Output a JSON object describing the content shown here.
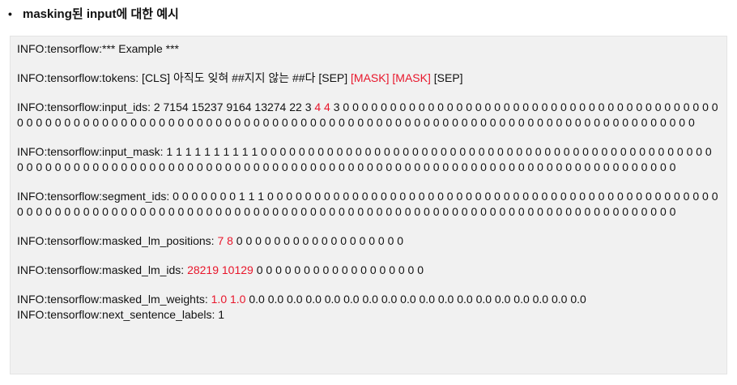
{
  "heading": {
    "bullet": "•",
    "text": "masking된 input에 대한 예시"
  },
  "colors": {
    "highlight": "#e8162b",
    "panel_bg": "#f1f1f1"
  },
  "log": {
    "example": "INFO:tensorflow:*** Example ***",
    "tokens": {
      "prefix": "INFO:tensorflow:tokens: [CLS] 아직도 잊혀 ##지지 않는 ##다 [SEP] ",
      "masked": "[MASK] [MASK]",
      "suffix": " [SEP]"
    },
    "input_ids": {
      "prefix": "INFO:tensorflow:input_ids: 2 7154 15237 9164 13274 22 3 ",
      "masked": "4 4",
      "suffix": " 3 0 0 0 0 0 0 0 0 0 0 0 0 0 0 0 0 0 0 0 0 0 0 0 0 0 0 0 0 0 0 0 0 0 0 0 0 0 0 0 0 0 0 0 0 0 0 0 0 0 0 0 0 0 0 0 0 0 0 0 0 0 0 0 0 0 0 0 0 0 0 0 0 0 0 0 0 0 0 0 0 0 0 0 0 0 0 0 0 0 0 0 0 0 0 0 0 0 0 0 0 0 0 0 0 0 0 0 0 0 0 0 0"
    },
    "input_mask": "INFO:tensorflow:input_mask: 1 1 1 1 1 1 1 1 1 1 0 0 0 0 0 0 0 0 0 0 0 0 0 0 0 0 0 0 0 0 0 0 0 0 0 0 0 0 0 0 0 0 0 0 0 0 0 0 0 0 0 0 0 0 0 0 0 0 0 0 0 0 0 0 0 0 0 0 0 0 0 0 0 0 0 0 0 0 0 0 0 0 0 0 0 0 0 0 0 0 0 0 0 0 0 0 0 0 0 0 0 0 0 0 0 0 0 0 0 0 0 0 0 0 0 0 0 0 0 0 0 0 0 0 0 0 0 0",
    "segment_ids": "INFO:tensorflow:segment_ids: 0 0 0 0 0 0 0 1 1 1 0 0 0 0 0 0 0 0 0 0 0 0 0 0 0 0 0 0 0 0 0 0 0 0 0 0 0 0 0 0 0 0 0 0 0 0 0 0 0 0 0 0 0 0 0 0 0 0 0 0 0 0 0 0 0 0 0 0 0 0 0 0 0 0 0 0 0 0 0 0 0 0 0 0 0 0 0 0 0 0 0 0 0 0 0 0 0 0 0 0 0 0 0 0 0 0 0 0 0 0 0 0 0 0 0 0 0 0 0 0 0 0 0 0 0 0 0 0",
    "masked_lm_positions": {
      "prefix": "INFO:tensorflow:masked_lm_positions: ",
      "masked": "7 8",
      "suffix": " 0 0 0 0 0 0 0 0 0 0 0 0 0 0 0 0 0 0"
    },
    "masked_lm_ids": {
      "prefix": "INFO:tensorflow:masked_lm_ids: ",
      "masked": "28219 10129",
      "suffix": " 0 0 0 0 0 0 0 0 0 0 0 0 0 0 0 0 0 0"
    },
    "masked_lm_weights": {
      "prefix": "INFO:tensorflow:masked_lm_weights: ",
      "masked": "1.0 1.0",
      "suffix": " 0.0 0.0 0.0 0.0 0.0 0.0 0.0 0.0 0.0 0.0 0.0 0.0 0.0 0.0 0.0 0.0 0.0 0.0"
    },
    "next_sentence_labels": "INFO:tensorflow:next_sentence_labels: 1"
  }
}
